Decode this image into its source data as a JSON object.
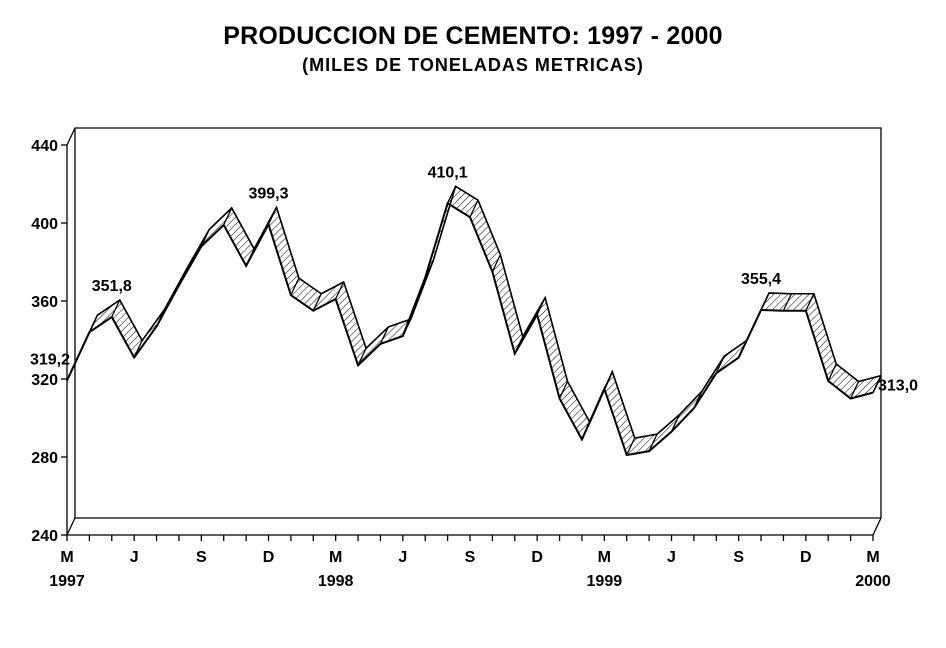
{
  "chart_data": {
    "type": "area",
    "title": "PRODUCCION DE CEMENTO: 1997 - 2000",
    "subtitle": "(MILES DE TONELADAS METRICAS)",
    "xlabel": "",
    "ylabel": "",
    "ylim": [
      240,
      440
    ],
    "yticks": [
      "240",
      "280",
      "320",
      "360",
      "400",
      "440"
    ],
    "grid": false,
    "x_month_labels": [
      "M",
      "J",
      "S",
      "D",
      "M",
      "J",
      "S",
      "D",
      "M",
      "J",
      "S",
      "D",
      "M"
    ],
    "x_year_labels": [
      "1997",
      "1998",
      "1999",
      "2000"
    ],
    "series": [
      {
        "values": [
          319.2,
          344,
          351.8,
          331,
          347,
          368,
          388,
          399,
          378,
          399.3,
          363,
          355,
          361,
          327,
          338,
          342,
          372,
          410.1,
          403,
          375,
          333,
          353,
          310,
          289,
          315,
          281,
          283,
          293,
          305,
          323,
          331,
          355.4,
          355,
          355,
          319,
          310,
          313.0
        ]
      }
    ],
    "annotations": [
      {
        "index": 0,
        "label": "319,2"
      },
      {
        "index": 2,
        "label": "351,8"
      },
      {
        "index": 9,
        "label": "399,3"
      },
      {
        "index": 17,
        "label": "410,1"
      },
      {
        "index": 31,
        "label": "355,4"
      },
      {
        "index": 36,
        "label": "313,0"
      }
    ]
  }
}
